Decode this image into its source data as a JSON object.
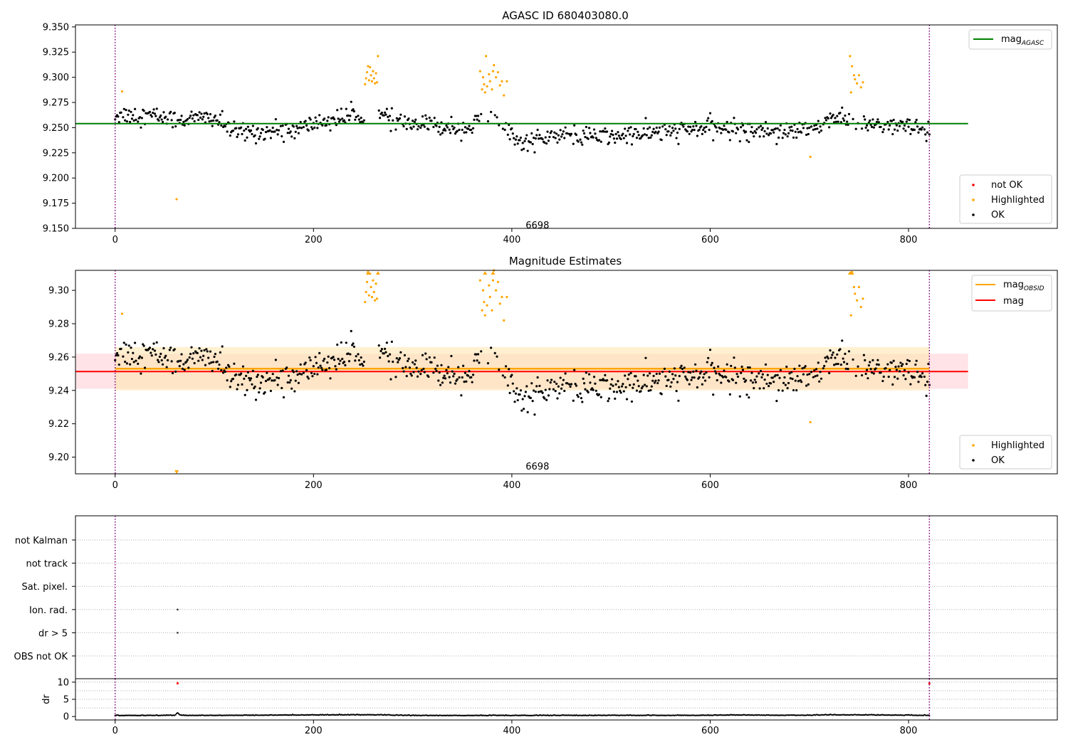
{
  "colors": {
    "ok": "#000000",
    "highlighted": "#ffa500",
    "not_ok": "#ff0000",
    "mag_agasc": "#008000",
    "mag_obsid": "#ffa500",
    "mag": "#ff0000",
    "obs_boundary": "#800080",
    "band_obsid": "#ffe6b3",
    "band_mag": "#ffc0c8"
  },
  "chart_data": [
    {
      "type": "scatter",
      "title": "AGASC ID 680403080.0",
      "xlabel": "",
      "ylabel": "",
      "xlim": [
        -40,
        950
      ],
      "ylim": [
        9.15,
        9.352
      ],
      "x_ticks": [
        0,
        200,
        400,
        600,
        800
      ],
      "y_ticks": [
        9.15,
        9.175,
        9.2,
        9.225,
        9.25,
        9.275,
        9.3,
        9.325,
        9.35
      ],
      "y_tick_labels": [
        "9.150",
        "9.175",
        "9.200",
        "9.225",
        "9.250",
        "9.275",
        "9.300",
        "9.325",
        "9.350"
      ],
      "grid": false,
      "legend_placement": [
        "top-right",
        "bottom-right"
      ],
      "legend_lines": [
        {
          "label": "mag",
          "subscript": "AGASC",
          "color": "#008000"
        }
      ],
      "legend_markers": [
        {
          "label": "not OK",
          "color": "#ff0000"
        },
        {
          "label": "Highlighted",
          "color": "#ffa500"
        },
        {
          "label": "OK",
          "color": "#000000"
        }
      ],
      "hlines": [
        {
          "name": "mag_AGASC",
          "y": 9.254,
          "x0": -40,
          "x1": 860
        }
      ],
      "obs_boundaries": [
        0,
        821
      ],
      "annotations": [
        {
          "text": "6698",
          "x": 410,
          "y": 9.155
        }
      ],
      "series": [
        {
          "name": "OK",
          "trend": [
            [
              0,
              9.263
            ],
            [
              40,
              9.262
            ],
            [
              60,
              9.258
            ],
            [
              100,
              9.26
            ],
            [
              120,
              9.245
            ],
            [
              180,
              9.247
            ],
            [
              200,
              9.254
            ],
            [
              240,
              9.262
            ],
            [
              255,
              9.262
            ],
            [
              265,
              9.262
            ],
            [
              300,
              9.253
            ],
            [
              360,
              9.25
            ],
            [
              370,
              9.262
            ],
            [
              395,
              9.255
            ],
            [
              405,
              9.235
            ],
            [
              450,
              9.242
            ],
            [
              500,
              9.241
            ],
            [
              600,
              9.25
            ],
            [
              650,
              9.247
            ],
            [
              700,
              9.247
            ],
            [
              720,
              9.26
            ],
            [
              745,
              9.255
            ],
            [
              800,
              9.25
            ],
            [
              821,
              9.246
            ]
          ],
          "scatter": 0.0085,
          "n_points": 821
        },
        {
          "name": "Highlighted",
          "points": [
            [
              7,
              9.286
            ],
            [
              62,
              9.179
            ],
            [
              252,
              9.293
            ],
            [
              253,
              9.299
            ],
            [
              254,
              9.305
            ],
            [
              255,
              9.311
            ],
            [
              256,
              9.297
            ],
            [
              257,
              9.31
            ],
            [
              258,
              9.302
            ],
            [
              259,
              9.296
            ],
            [
              260,
              9.306
            ],
            [
              261,
              9.299
            ],
            [
              262,
              9.294
            ],
            [
              263,
              9.304
            ],
            [
              264,
              9.295
            ],
            [
              265,
              9.321
            ],
            [
              368,
              9.306
            ],
            [
              370,
              9.288
            ],
            [
              371,
              9.3
            ],
            [
              372,
              9.293
            ],
            [
              373,
              9.285
            ],
            [
              374,
              9.321
            ],
            [
              375,
              9.291
            ],
            [
              377,
              9.303
            ],
            [
              378,
              9.296
            ],
            [
              380,
              9.288
            ],
            [
              381,
              9.306
            ],
            [
              382,
              9.312
            ],
            [
              384,
              9.3
            ],
            [
              386,
              9.305
            ],
            [
              388,
              9.292
            ],
            [
              390,
              9.296
            ],
            [
              392,
              9.282
            ],
            [
              395,
              9.296
            ],
            [
              701,
              9.221
            ],
            [
              741,
              9.321
            ],
            [
              742,
              9.285
            ],
            [
              743,
              9.311
            ],
            [
              745,
              9.302
            ],
            [
              746,
              9.298
            ],
            [
              748,
              9.294
            ],
            [
              750,
              9.302
            ],
            [
              752,
              9.29
            ],
            [
              754,
              9.295
            ]
          ]
        }
      ]
    },
    {
      "type": "scatter",
      "title": "Magnitude Estimates",
      "xlabel": "",
      "ylabel": "",
      "xlim": [
        -40,
        950
      ],
      "ylim": [
        9.19,
        9.312
      ],
      "x_ticks": [
        0,
        200,
        400,
        600,
        800
      ],
      "y_ticks": [
        9.2,
        9.22,
        9.24,
        9.26,
        9.28,
        9.3
      ],
      "y_tick_labels": [
        "9.20",
        "9.22",
        "9.24",
        "9.26",
        "9.28",
        "9.30"
      ],
      "grid": false,
      "legend_placement": [
        "top-right",
        "bottom-right"
      ],
      "legend_lines": [
        {
          "label": "mag",
          "subscript": "OBSID",
          "color": "#ffa500"
        },
        {
          "label": "mag",
          "subscript": "",
          "color": "#ff0000"
        }
      ],
      "legend_markers": [
        {
          "label": "Highlighted",
          "color": "#ffa500"
        },
        {
          "label": "OK",
          "color": "#000000"
        }
      ],
      "hlines": [
        {
          "name": "mag_OBSID",
          "y": 9.253,
          "x0": 0,
          "x1": 821
        },
        {
          "name": "mag",
          "y": 9.2513,
          "x0": -40,
          "x1": 860
        }
      ],
      "bands": [
        {
          "name": "mag_OBSID range",
          "y0": 9.24,
          "y1": 9.266,
          "x0": 0,
          "x1": 821
        },
        {
          "name": "mag range",
          "y0": 9.241,
          "y1": 9.262,
          "x0": -40,
          "x1": 860
        }
      ],
      "obs_boundaries": [
        0,
        821
      ],
      "annotations": [
        {
          "text": "6698",
          "x": 410,
          "y": 9.193
        }
      ],
      "clipped_markers": [
        {
          "x": 255,
          "y": 9.311,
          "direction": "up"
        },
        {
          "x": 265,
          "y": 9.311,
          "direction": "up"
        },
        {
          "x": 373,
          "y": 9.311,
          "direction": "up"
        },
        {
          "x": 381,
          "y": 9.311,
          "direction": "up"
        },
        {
          "x": 741,
          "y": 9.311,
          "direction": "up"
        },
        {
          "x": 743,
          "y": 9.311,
          "direction": "up"
        },
        {
          "x": 62,
          "y": 9.191,
          "direction": "down"
        }
      ],
      "series": [
        {
          "name": "OK",
          "same_as_panel": 0
        },
        {
          "name": "Highlighted",
          "same_as_panel": 0
        }
      ]
    },
    {
      "type": "scatter",
      "title": "",
      "xlabel": "",
      "ylabel": "",
      "xlim": [
        -40,
        950
      ],
      "categories": [
        "OBS not OK",
        "dr > 5",
        "Ion. rad.",
        "Sat. pixel.",
        "not track",
        "not Kalman"
      ],
      "grid": true,
      "flag_points": [
        {
          "category": "Ion. rad.",
          "x": 63
        },
        {
          "category": "dr > 5",
          "x": 63
        }
      ]
    },
    {
      "type": "scatter",
      "title": "",
      "xlabel": "",
      "ylabel": "dr",
      "xlim": [
        -40,
        950
      ],
      "ylim": [
        -1,
        11
      ],
      "y_ticks": [
        0,
        5,
        10
      ],
      "y_tick_labels": [
        "0",
        "5",
        "10"
      ],
      "x_ticks": [
        0,
        200,
        400,
        600,
        800
      ],
      "hlines_dotted": [
        2.5,
        5,
        7.5,
        10
      ],
      "obs_boundaries": [
        0,
        821
      ],
      "series": [
        {
          "name": "dr",
          "trend": [
            [
              0,
              0.25
            ],
            [
              60,
              0.3
            ],
            [
              63,
              1.0
            ],
            [
              66,
              0.3
            ],
            [
              120,
              0.3
            ],
            [
              220,
              0.45
            ],
            [
              260,
              0.45
            ],
            [
              300,
              0.25
            ],
            [
              600,
              0.3
            ],
            [
              620,
              0.4
            ],
            [
              700,
              0.3
            ],
            [
              720,
              0.45
            ],
            [
              760,
              0.4
            ],
            [
              821,
              0.3
            ]
          ],
          "n_points": 821
        },
        {
          "name": "dr > 5",
          "points": [
            [
              63,
              9.8
            ],
            [
              821,
              9.8
            ]
          ]
        }
      ]
    }
  ]
}
